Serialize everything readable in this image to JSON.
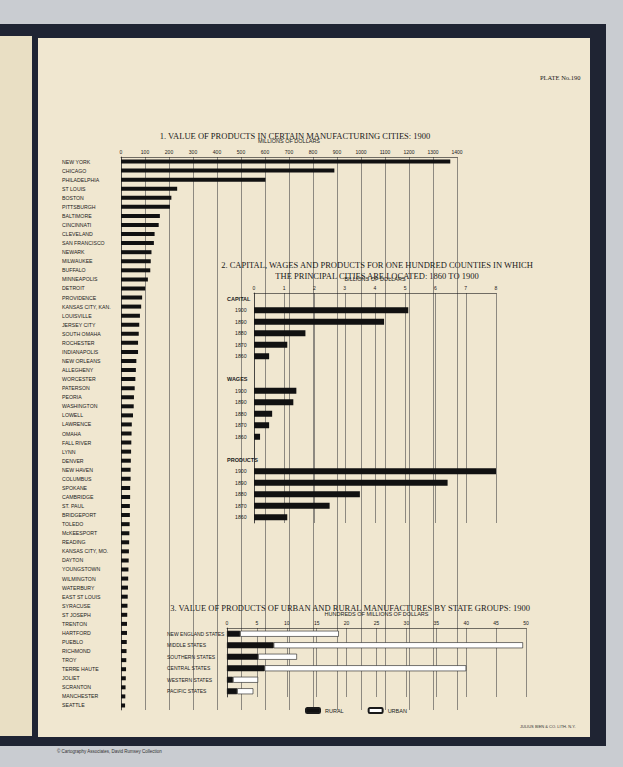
{
  "page": {
    "plate": "PLATE No.190",
    "imprint": "JULIUS BIEN & CO. LITH. N.Y.",
    "credit": "© Cartography Associates, David Rumsey Collection"
  },
  "chart_data": [
    {
      "type": "bar",
      "title": "1. VALUE OF PRODUCTS IN CERTAIN MANUFACTURING CITIES: 1900",
      "xlabel": "MILLIONS OF DOLLARS",
      "orientation": "horizontal",
      "color": "#111111",
      "grid": true,
      "xlim": [
        0,
        1400
      ],
      "xticks": [
        0,
        100,
        200,
        300,
        400,
        500,
        600,
        700,
        800,
        900,
        1000,
        1100,
        1200,
        1300,
        1400
      ],
      "categories": [
        "NEW YORK",
        "CHICAGO",
        "PHILADELPHIA",
        "ST LOUIS",
        "BOSTON",
        "PITTSBURGH",
        "BALTIMORE",
        "CINCINNATI",
        "CLEVELAND",
        "SAN FRANCISCO",
        "NEWARK",
        "MILWAUKEE",
        "BUFFALO",
        "MINNEAPOLIS",
        "DETROIT",
        "PROVIDENCE",
        "KANSAS CITY, KAN.",
        "LOUISVILLE",
        "JERSEY CITY",
        "SOUTH OMAHA",
        "ROCHESTER",
        "INDIANAPOLIS",
        "NEW ORLEANS",
        "ALLEGHENY",
        "WORCESTER",
        "PATERSON",
        "PEORIA",
        "WASHINGTON",
        "LOWELL",
        "LAWRENCE",
        "OMAHA",
        "FALL RIVER",
        "LYNN",
        "DENVER",
        "NEW HAVEN",
        "COLUMBUS",
        "SPOKANE",
        "CAMBRIDGE",
        "ST. PAUL",
        "BRIDGEPORT",
        "TOLEDO",
        "McKEESPORT",
        "READING",
        "KANSAS CITY, MO.",
        "DAYTON",
        "YOUNGSTOWN",
        "WILMINGTON",
        "WATERBURY",
        "EAST ST LOUIS",
        "SYRACUSE",
        "ST JOSEPH",
        "TRENTON",
        "HARTFORD",
        "PUEBLO",
        "RICHMOND",
        "TROY",
        "TERRE HAUTE",
        "JOLIET",
        "SCRANTON",
        "MANCHESTER",
        "SEATTLE"
      ],
      "values": [
        1372,
        889,
        602,
        234,
        210,
        204,
        162,
        157,
        140,
        137,
        127,
        124,
        122,
        112,
        101,
        88,
        84,
        79,
        76,
        74,
        71,
        71,
        64,
        62,
        60,
        57,
        54,
        53,
        50,
        45,
        44,
        43,
        42,
        41,
        40,
        40,
        38,
        38,
        37,
        37,
        36,
        35,
        34,
        33,
        32,
        31,
        30,
        29,
        28,
        27,
        26,
        25,
        25,
        24,
        23,
        22,
        21,
        20,
        19,
        18,
        17
      ]
    },
    {
      "type": "bar",
      "title": "2. CAPITAL, WAGES AND PRODUCTS FOR ONE HUNDRED COUNTIES IN WHICH\nTHE PRINCIPAL CITIES ARE LOCATED: 1860 TO 1900",
      "xlabel": "BILLIONS OF DOLLARS",
      "orientation": "horizontal",
      "color": "#111111",
      "grid": true,
      "xlim": [
        0,
        8
      ],
      "xticks": [
        0,
        1,
        2,
        3,
        4,
        5,
        6,
        7,
        8
      ],
      "groups": [
        {
          "name": "CAPITAL",
          "categories": [
            "1900",
            "1890",
            "1880",
            "1870",
            "1860"
          ],
          "values": [
            5.1,
            4.3,
            1.7,
            1.1,
            0.5
          ]
        },
        {
          "name": "WAGES",
          "categories": [
            "1900",
            "1890",
            "1880",
            "1870",
            "1860"
          ],
          "values": [
            1.4,
            1.3,
            0.6,
            0.5,
            0.2
          ]
        },
        {
          "name": "PRODUCTS",
          "categories": [
            "1900",
            "1890",
            "1880",
            "1870",
            "1860"
          ],
          "values": [
            8.0,
            6.4,
            3.5,
            2.5,
            1.1
          ]
        }
      ]
    },
    {
      "type": "bar",
      "title": "3. VALUE OF PRODUCTS OF URBAN AND RURAL MANUFACTURES BY STATE GROUPS: 1900",
      "xlabel": "HUNDREDS OF MILLIONS OF DOLLARS",
      "orientation": "horizontal",
      "stacked": true,
      "grid": true,
      "legend": "bottom",
      "xlim": [
        0,
        50
      ],
      "xticks": [
        0,
        5,
        10,
        15,
        20,
        25,
        30,
        35,
        40,
        45,
        50
      ],
      "categories": [
        "NEW ENGLAND STATES",
        "MIDDLE STATES",
        "SOUTHERN STATES",
        "CENTRAL STATES",
        "WESTERN STATES",
        "PACIFIC STATES"
      ],
      "series": [
        {
          "name": "RURAL",
          "color": "#111111",
          "values": [
            2.2,
            7.8,
            5.2,
            6.3,
            1.0,
            1.7
          ]
        },
        {
          "name": "URBAN",
          "color": "#ffffff",
          "values": [
            16.5,
            41.7,
            6.5,
            33.7,
            4.2,
            2.7
          ]
        }
      ]
    }
  ]
}
